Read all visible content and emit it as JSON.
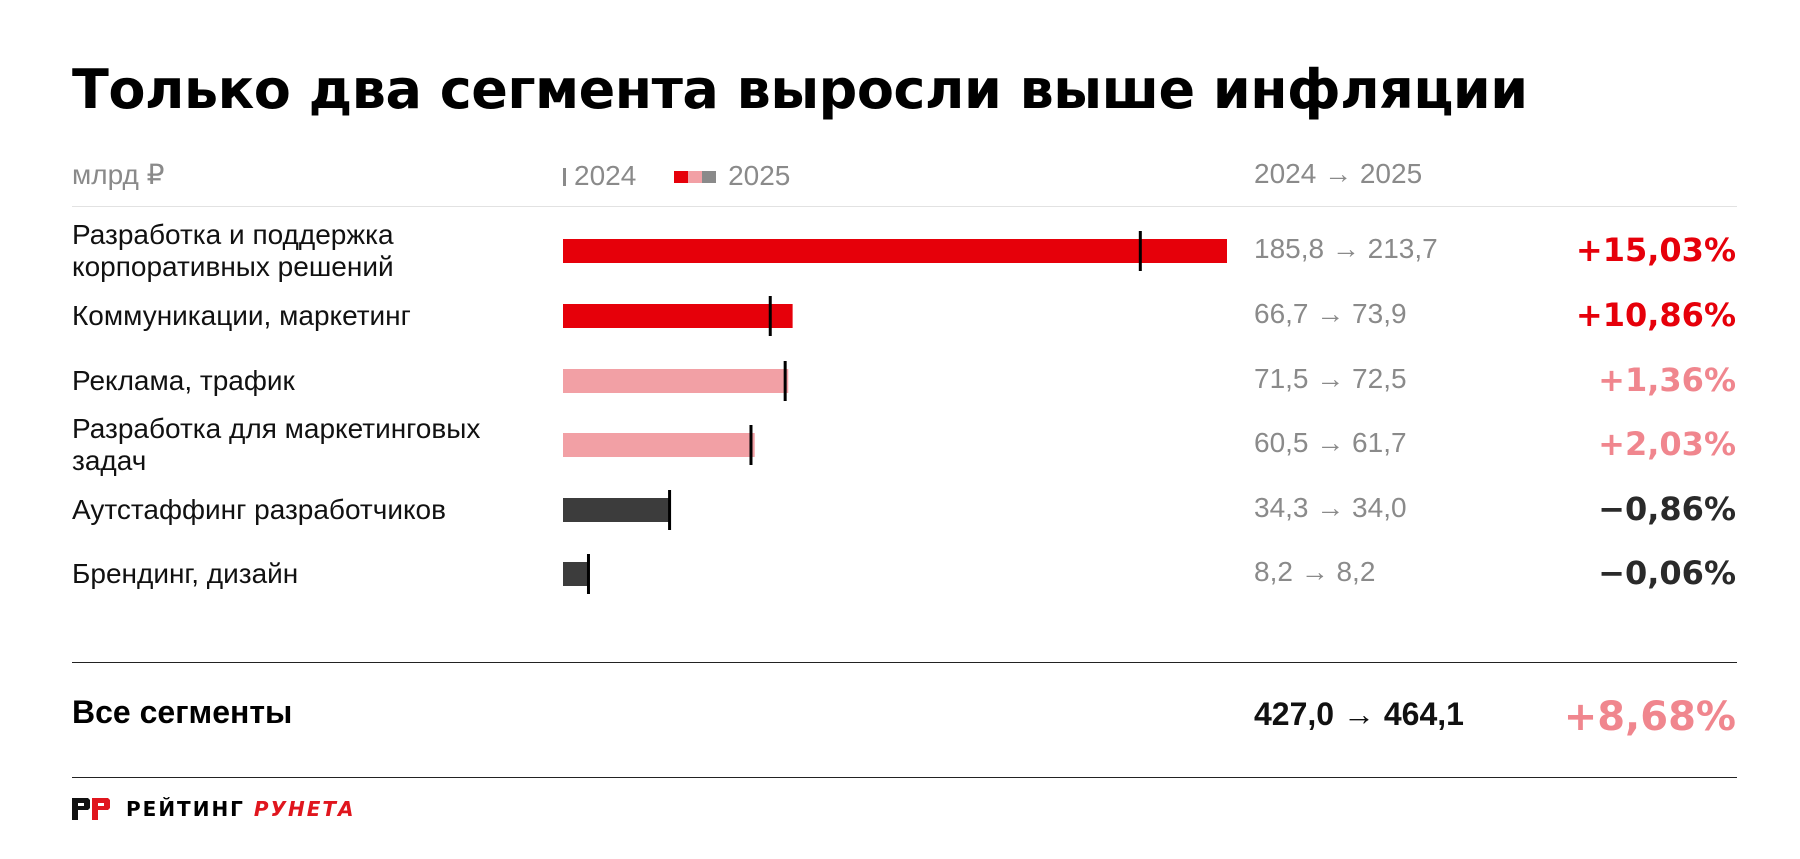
{
  "title": "Только два сегмента выросли выше инфляции",
  "unit_label": "млрд ₽",
  "legend": {
    "y2024": "2024",
    "y2025": "2025"
  },
  "change_header": "2024 → 2025",
  "colors": {
    "red": "#e6000a",
    "pink": "#f2a0a5",
    "dark": "#3c3c3c",
    "marker": "#000000",
    "total_pct": "#f0868e"
  },
  "chart_data": {
    "type": "bar",
    "categories": [
      "Разработка и поддержка корпоративных решений",
      "Коммуникации, маркетинг",
      "Реклама, трафик",
      "Разработка для маркетинговых задач",
      "Аутстаффинг разработчиков",
      "Брендинг, дизайн"
    ],
    "series": [
      {
        "name": "2024",
        "values": [
          185.8,
          66.7,
          71.5,
          60.5,
          34.3,
          8.2
        ]
      },
      {
        "name": "2025",
        "values": [
          213.7,
          73.9,
          72.5,
          61.7,
          34.0,
          8.2
        ]
      }
    ],
    "change_pct": [
      "+15,03%",
      "+10,86%",
      "+1,36%",
      "+2,03%",
      "−0,86%",
      "−0,06%"
    ],
    "pairs": [
      "185,8 → 213,7",
      "66,7 → 73,9",
      "71,5 → 72,5",
      "60,5 → 61,7",
      "34,3 → 34,0",
      "8,2 → 8,2"
    ],
    "color_group": [
      "red",
      "red",
      "pink",
      "pink",
      "dark",
      "dark"
    ],
    "ylabel": "млрд ₽"
  },
  "total": {
    "label": "Все сегменты",
    "pair": "427,0 → 464,1",
    "pct": "+8,68%"
  },
  "logo": {
    "part1": "РЕЙТИНГ",
    "part2": "РУНЕТА"
  }
}
